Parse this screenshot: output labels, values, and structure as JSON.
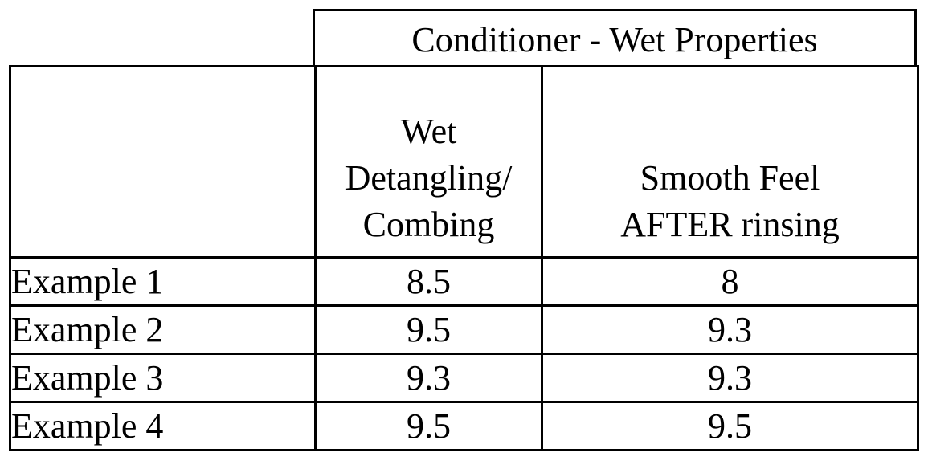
{
  "table": {
    "group_header": "Conditioner - Wet Properties",
    "corner_header": "",
    "columns": [
      {
        "lines": [
          "Wet",
          "Detangling/",
          "Combing"
        ]
      },
      {
        "lines": [
          "Smooth Feel",
          "AFTER rinsing"
        ]
      }
    ],
    "rows": [
      {
        "label": "Example 1",
        "values": [
          "8.5",
          "8"
        ]
      },
      {
        "label": "Example 2",
        "values": [
          "9.5",
          "9.3"
        ]
      },
      {
        "label": "Example 3",
        "values": [
          "9.3",
          "9.3"
        ]
      },
      {
        "label": "Example 4",
        "values": [
          "9.5",
          "9.5"
        ]
      }
    ]
  }
}
